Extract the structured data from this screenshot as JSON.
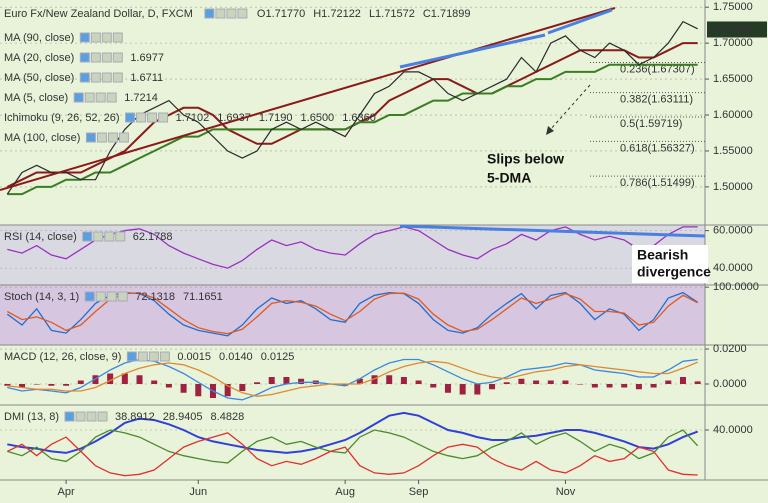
{
  "header": {
    "title": "Euro Fx/New Zealand Dollar, D, FXCM",
    "open": "O1.71770",
    "high": "H1.72122",
    "low": "L1.71572",
    "close": "C1.71899"
  },
  "x_axis": {
    "categories": [
      null,
      null,
      null,
      null,
      "Apr",
      null,
      null,
      null,
      null,
      null,
      null,
      null,
      null,
      "Jun",
      null,
      null,
      null,
      null,
      null,
      null,
      null,
      null,
      null,
      "Aug",
      null,
      null,
      null,
      null,
      "Sep",
      null,
      null,
      null,
      null,
      null,
      null,
      null,
      null,
      null,
      "Nov",
      null,
      null,
      null,
      null,
      null,
      null,
      null,
      null,
      null
    ]
  },
  "price_pane": {
    "ylim": [
      1.447,
      1.76
    ],
    "yticks": [
      {
        "value": 1.75,
        "label": "1.75000"
      },
      {
        "value": 1.7,
        "label": "1.70000"
      },
      {
        "value": 1.65,
        "label": "1.65000"
      },
      {
        "value": 1.6,
        "label": "1.60000"
      },
      {
        "value": 1.55,
        "label": "1.55000"
      },
      {
        "value": 1.5,
        "label": "1.50000"
      }
    ],
    "last_price": {
      "value": 1.71899,
      "label": "1.71899"
    },
    "price": {
      "color": "#2b2b2b",
      "values": [
        1.49,
        1.52,
        1.53,
        1.52,
        1.52,
        1.51,
        1.51,
        1.55,
        1.58,
        1.6,
        1.61,
        1.62,
        1.6,
        1.59,
        1.57,
        1.55,
        1.54,
        1.55,
        1.58,
        1.59,
        1.58,
        1.59,
        1.58,
        1.57,
        1.6,
        1.63,
        1.64,
        1.66,
        1.66,
        1.65,
        1.63,
        1.62,
        1.63,
        1.64,
        1.65,
        1.68,
        1.66,
        1.7,
        1.71,
        1.69,
        1.68,
        1.7,
        1.69,
        1.67,
        1.68,
        1.7,
        1.73,
        1.72
      ]
    },
    "indicators": [
      {
        "name": "MA (90, close)",
        "faded": true
      },
      {
        "name": "MA (20, close)",
        "readings": [
          {
            "text": "1.6977",
            "color": "#a01818"
          }
        ],
        "color": "#8b1a1a",
        "values": [
          1.5,
          1.51,
          1.52,
          1.52,
          1.52,
          1.52,
          1.53,
          1.54,
          1.55,
          1.57,
          1.59,
          1.6,
          1.61,
          1.61,
          1.6,
          1.58,
          1.57,
          1.56,
          1.56,
          1.57,
          1.58,
          1.58,
          1.58,
          1.58,
          1.59,
          1.6,
          1.62,
          1.63,
          1.64,
          1.65,
          1.65,
          1.64,
          1.63,
          1.63,
          1.64,
          1.65,
          1.66,
          1.67,
          1.68,
          1.69,
          1.69,
          1.69,
          1.69,
          1.68,
          1.68,
          1.69,
          1.7,
          1.7
        ]
      },
      {
        "name": "MA (50, close)",
        "readings": [
          {
            "text": "1.6711",
            "color": "#2e7d1e"
          }
        ],
        "color": "#3a7d22",
        "values": [
          1.49,
          1.49,
          1.5,
          1.5,
          1.51,
          1.51,
          1.52,
          1.52,
          1.53,
          1.54,
          1.55,
          1.56,
          1.57,
          1.57,
          1.58,
          1.58,
          1.58,
          1.58,
          1.58,
          1.58,
          1.58,
          1.58,
          1.58,
          1.58,
          1.59,
          1.59,
          1.6,
          1.6,
          1.61,
          1.62,
          1.62,
          1.63,
          1.63,
          1.63,
          1.64,
          1.64,
          1.65,
          1.65,
          1.66,
          1.66,
          1.66,
          1.67,
          1.67,
          1.67,
          1.67,
          1.67,
          1.67,
          1.67
        ]
      },
      {
        "name": "MA (5, close)",
        "readings": [
          {
            "text": "1.7214",
            "color": "#1e4fd0"
          }
        ]
      },
      {
        "name": "Ichimoku (9, 26, 52, 26)",
        "readings": [
          {
            "text": "1.7102",
            "color": "#1e4fd0"
          },
          {
            "text": "1.6937",
            "color": "#a01818"
          },
          {
            "text": "1.7190",
            "color": "#2e7d1e"
          },
          {
            "text": "1.6500",
            "color": "#2e7d1e"
          },
          {
            "text": "1.6360",
            "color": "#c02020"
          }
        ]
      },
      {
        "name": "MA (100, close)",
        "faded": true
      }
    ],
    "fibonacci": [
      {
        "value": 1.67307,
        "label": "0.236(1.67307)",
        "color": "#333"
      },
      {
        "value": 1.63111,
        "label": "0.382(1.63111)",
        "color": "#333"
      },
      {
        "value": 1.59719,
        "label": "0.5(1.59719)",
        "color": "#6a9a3a"
      },
      {
        "value": 1.56327,
        "label": "0.618(1.56327)",
        "color": "#333"
      },
      {
        "value": 1.51499,
        "label": "0.786(1.51499)",
        "color": "#333"
      }
    ],
    "annotation": [
      "Slips below",
      "5-DMA"
    ]
  },
  "panes": [
    {
      "label": "RSI (14, close)",
      "background": "#d9d9e2",
      "readings": [
        {
          "text": "62.1788",
          "color": "#7b2fa0"
        }
      ],
      "ylim": [
        31,
        63
      ],
      "yticks": [
        {
          "value": 60,
          "label": "60.0000"
        },
        {
          "value": 40,
          "label": "40.0000"
        }
      ],
      "annotation": [
        "Bearish",
        "divergence"
      ],
      "series": [
        {
          "color": "#9b30c0",
          "values": [
            50,
            48,
            52,
            47,
            45,
            50,
            55,
            58,
            60,
            61,
            58,
            52,
            48,
            45,
            42,
            40,
            44,
            50,
            55,
            52,
            54,
            50,
            48,
            47,
            53,
            58,
            60,
            62,
            60,
            55,
            50,
            47,
            45,
            50,
            53,
            58,
            55,
            60,
            62,
            58,
            55,
            57,
            55,
            50,
            52,
            58,
            62,
            62
          ]
        }
      ]
    },
    {
      "label": "Stoch (14, 3, 1)",
      "background": "#d6c6e0",
      "readings": [
        {
          "text": "72.1318",
          "color": "#1e6fd0"
        },
        {
          "text": "71.1651",
          "color": "#d04818"
        }
      ],
      "ylim": [
        -7,
        104
      ],
      "yticks": [
        {
          "value": 100,
          "label": "100.0000"
        }
      ],
      "series": [
        {
          "color": "#1e6fd0",
          "values": [
            50,
            30,
            60,
            20,
            15,
            40,
            70,
            85,
            90,
            88,
            75,
            50,
            30,
            20,
            15,
            10,
            30,
            60,
            80,
            70,
            75,
            60,
            40,
            35,
            70,
            85,
            90,
            88,
            70,
            40,
            20,
            15,
            25,
            50,
            70,
            88,
            60,
            85,
            90,
            70,
            40,
            60,
            50,
            20,
            40,
            80,
            90,
            72
          ]
        },
        {
          "color": "#e05a20",
          "values": [
            55,
            40,
            45,
            35,
            20,
            30,
            55,
            78,
            88,
            89,
            80,
            60,
            40,
            25,
            18,
            14,
            22,
            45,
            70,
            75,
            72,
            65,
            50,
            38,
            55,
            78,
            88,
            89,
            78,
            50,
            30,
            18,
            22,
            40,
            60,
            80,
            70,
            78,
            88,
            78,
            55,
            55,
            52,
            30,
            35,
            65,
            85,
            71
          ]
        }
      ]
    },
    {
      "label": "MACD (12, 26, close, 9)",
      "background": "#e8f3da",
      "readings": [
        {
          "text": "0.0015",
          "color": "#a01818"
        },
        {
          "text": "0.0140",
          "color": "#1e6fd0"
        },
        {
          "text": "0.0125",
          "color": "#e07a20"
        }
      ],
      "ylim": [
        -0.012,
        0.0223
      ],
      "yticks": [
        {
          "value": 0.02,
          "label": "0.0200"
        },
        {
          "value": 0,
          "label": "0.0000"
        }
      ],
      "series": [
        {
          "color": "#a02040",
          "style": "histogram",
          "values": [
            -0.001,
            -0.002,
            0,
            -0.001,
            -0.001,
            0.002,
            0.005,
            0.006,
            0.006,
            0.005,
            0.002,
            -0.002,
            -0.005,
            -0.007,
            -0.008,
            -0.007,
            -0.004,
            0.001,
            0.004,
            0.004,
            0.003,
            0.002,
            0,
            -0.001,
            0.003,
            0.005,
            0.005,
            0.004,
            0.002,
            -0.002,
            -0.005,
            -0.006,
            -0.006,
            -0.003,
            0.001,
            0.003,
            0.002,
            0.002,
            0.002,
            0,
            -0.002,
            -0.002,
            -0.002,
            -0.003,
            -0.002,
            0.002,
            0.004,
            0.0015
          ]
        },
        {
          "color": "#3a8ae0",
          "values": [
            -0.002,
            -0.004,
            -0.003,
            -0.004,
            -0.005,
            -0.002,
            0.003,
            0.008,
            0.012,
            0.014,
            0.013,
            0.01,
            0.006,
            0.001,
            -0.004,
            -0.008,
            -0.009,
            -0.006,
            -0.002,
            0,
            0.001,
            0.001,
            0,
            -0.001,
            0.003,
            0.008,
            0.012,
            0.014,
            0.014,
            0.011,
            0.007,
            0.003,
            0,
            0.001,
            0.004,
            0.008,
            0.009,
            0.01,
            0.012,
            0.011,
            0.008,
            0.007,
            0.006,
            0.004,
            0.004,
            0.008,
            0.013,
            0.014
          ]
        },
        {
          "color": "#e08a30",
          "values": [
            -0.001,
            -0.002,
            -0.003,
            -0.003,
            -0.004,
            -0.004,
            -0.002,
            0.002,
            0.006,
            0.009,
            0.011,
            0.012,
            0.011,
            0.008,
            0.004,
            -0.001,
            -0.005,
            -0.007,
            -0.006,
            -0.004,
            -0.002,
            -0.001,
            0,
            0,
            0,
            0.003,
            0.007,
            0.01,
            0.012,
            0.013,
            0.012,
            0.009,
            0.006,
            0.004,
            0.003,
            0.005,
            0.007,
            0.008,
            0.01,
            0.011,
            0.01,
            0.009,
            0.008,
            0.007,
            0.006,
            0.006,
            0.009,
            0.0125
          ]
        }
      ]
    },
    {
      "label": "DMI (13, 8)",
      "background": "#e8f3da",
      "readings": [
        {
          "text": "38.8912",
          "color": "#2838d0"
        },
        {
          "text": "28.9405",
          "color": "#3a7d22"
        },
        {
          "text": "8.4828",
          "color": "#d02020"
        }
      ],
      "ylim": [
        5,
        57.5
      ],
      "yticks": [
        {
          "value": 40,
          "label": "40.0000"
        }
      ],
      "series": [
        {
          "color": "#3040d8",
          "width": 2,
          "values": [
            30,
            28,
            27,
            25,
            24,
            27,
            32,
            38,
            45,
            48,
            47,
            44,
            40,
            35,
            32,
            30,
            28,
            26,
            25,
            24,
            25,
            27,
            30,
            33,
            38,
            44,
            50,
            52,
            50,
            45,
            40,
            38,
            35,
            33,
            33,
            35,
            36,
            38,
            40,
            40,
            38,
            35,
            32,
            28,
            27,
            30,
            35,
            38.8912
          ]
        },
        {
          "color": "#4a8a2a",
          "values": [
            25,
            22,
            28,
            20,
            18,
            25,
            35,
            40,
            38,
            35,
            30,
            25,
            22,
            20,
            18,
            17,
            25,
            32,
            35,
            30,
            32,
            28,
            25,
            24,
            35,
            40,
            38,
            35,
            30,
            25,
            22,
            20,
            22,
            28,
            32,
            38,
            30,
            35,
            38,
            32,
            25,
            30,
            27,
            20,
            24,
            35,
            40,
            28.9405
          ]
        },
        {
          "color": "#e03030",
          "values": [
            25,
            30,
            22,
            30,
            35,
            25,
            15,
            10,
            8,
            9,
            12,
            20,
            28,
            32,
            35,
            38,
            30,
            20,
            15,
            18,
            16,
            20,
            25,
            28,
            15,
            10,
            9,
            10,
            15,
            22,
            28,
            30,
            28,
            20,
            15,
            12,
            18,
            12,
            10,
            15,
            22,
            18,
            20,
            28,
            25,
            12,
            9,
            8.4828
          ]
        }
      ]
    }
  ]
}
